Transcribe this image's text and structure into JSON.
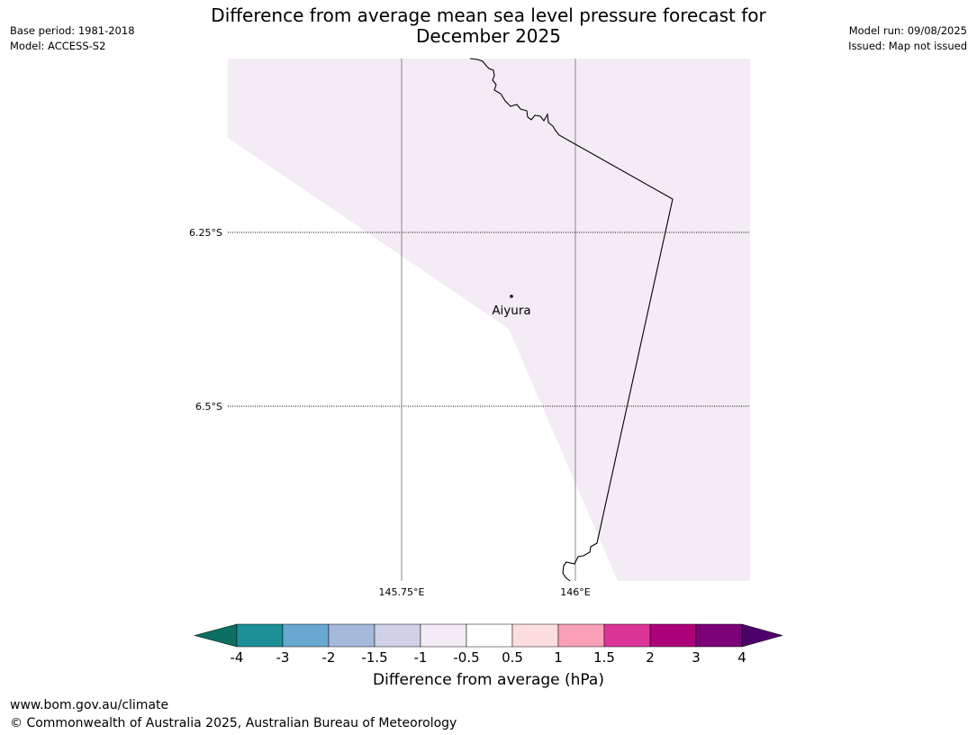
{
  "title": {
    "line1": "Difference from average mean sea level pressure forecast for",
    "line2": "December 2025"
  },
  "meta": {
    "base_period": "Base period: 1981-2018",
    "model": "Model: ACCESS-S2",
    "model_run": "Model run: 09/08/2025",
    "issued": "Issued: Map not issued"
  },
  "map": {
    "lat_labels": [
      "6.25°S",
      "6.5°S"
    ],
    "lon_labels": [
      "145.75°E",
      "146°E"
    ],
    "place": "Aiyura",
    "shaded_fill_color": "#f3ecf4"
  },
  "colorbar": {
    "label": "Difference from average (hPa)",
    "ticks": [
      "-4",
      "-3",
      "-2",
      "-1.5",
      "-1",
      "-0.5",
      "0.5",
      "1",
      "1.5",
      "2",
      "3",
      "4"
    ],
    "colors": [
      "#1b9097",
      "#69a8d0",
      "#a5bada",
      "#d0d0e6",
      "#f3ecf4",
      "#ffffff",
      "#fddede",
      "#f9a0b7",
      "#dc3597",
      "#ad0179",
      "#7a0178"
    ],
    "under_color": "#0d6e62",
    "over_color": "#4d006a"
  },
  "footer": {
    "url": "www.bom.gov.au/climate",
    "copyright": "© Commonwealth of Australia 2025, Australian Bureau of Meteorology"
  }
}
